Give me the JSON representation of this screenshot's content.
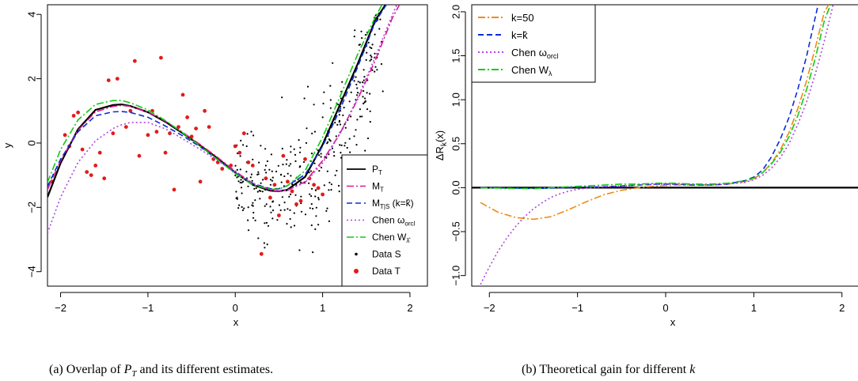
{
  "chart_data": [
    {
      "type": "line",
      "xlabel": "x",
      "ylabel": "y",
      "xlim": [
        -2.15,
        2.2
      ],
      "ylim": [
        -4.45,
        4.3
      ],
      "xticks": [
        -2,
        -1,
        0,
        1,
        2
      ],
      "yticks": [
        -4,
        -2,
        0,
        2,
        4
      ],
      "tick_labels_x": [
        "−2",
        "−1",
        "0",
        "1",
        "2"
      ],
      "tick_labels_y": [
        "−4",
        "−2",
        "0",
        "2",
        "4"
      ],
      "legend_position": "bottom-right",
      "legend": [
        {
          "label": "P",
          "sub": "T",
          "color": "#000000",
          "style": "solid"
        },
        {
          "label": "M",
          "sub": "T",
          "color": "#e0188a",
          "style": "dashdot"
        },
        {
          "label": "M",
          "sub": "T|S",
          "suffix": " (k=k̂)",
          "color": "#0a2cd6",
          "style": "dashed"
        },
        {
          "label": "Chen ω",
          "sub": "orcl",
          "color": "#b044e0",
          "style": "dotted"
        },
        {
          "label": "Chen W",
          "sub": "λ̂",
          "color": "#11cc11",
          "style": "dashdot"
        },
        {
          "label": "Data S",
          "color": "#000000",
          "style": "point-small"
        },
        {
          "label": "Data T",
          "color": "#e21b1b",
          "style": "point-large"
        }
      ],
      "series": [
        {
          "name": "P_T",
          "color": "#000000",
          "x": [
            -2.15,
            -2.0,
            -1.8,
            -1.6,
            -1.4,
            -1.3,
            -1.2,
            -1.0,
            -0.8,
            -0.6,
            -0.4,
            -0.2,
            0.0,
            0.2,
            0.4,
            0.5,
            0.6,
            0.8,
            1.0,
            1.2,
            1.4,
            1.6,
            1.72
          ],
          "y": [
            -1.68,
            -0.62,
            0.43,
            1.03,
            1.18,
            1.2,
            1.15,
            0.96,
            0.66,
            0.3,
            -0.08,
            -0.48,
            -0.92,
            -1.3,
            -1.48,
            -1.5,
            -1.45,
            -1.05,
            -0.05,
            1.2,
            2.45,
            3.8,
            4.3
          ]
        },
        {
          "name": "M_T",
          "color": "#e0188a",
          "x": [
            -2.15,
            -2.0,
            -1.8,
            -1.6,
            -1.4,
            -1.3,
            -1.2,
            -1.0,
            -0.8,
            -0.6,
            -0.4,
            -0.2,
            0.0,
            0.2,
            0.4,
            0.5,
            0.6,
            0.8,
            1.0,
            1.2,
            1.4,
            1.6,
            1.8,
            1.88
          ],
          "y": [
            -1.45,
            -0.55,
            0.4,
            0.97,
            1.14,
            1.17,
            1.14,
            0.96,
            0.68,
            0.33,
            -0.05,
            -0.45,
            -0.88,
            -1.25,
            -1.46,
            -1.5,
            -1.47,
            -1.2,
            -0.55,
            0.3,
            1.35,
            2.55,
            3.9,
            4.3
          ]
        },
        {
          "name": "M_T|S (k=k̂)",
          "color": "#0a2cd6",
          "x": [
            -2.15,
            -2.0,
            -1.8,
            -1.6,
            -1.4,
            -1.3,
            -1.2,
            -1.0,
            -0.8,
            -0.6,
            -0.4,
            -0.2,
            0.0,
            0.2,
            0.4,
            0.5,
            0.6,
            0.8,
            1.0,
            1.2,
            1.4,
            1.6,
            1.73
          ],
          "y": [
            -1.35,
            -0.5,
            0.35,
            0.85,
            0.97,
            0.98,
            0.95,
            0.8,
            0.53,
            0.22,
            -0.12,
            -0.52,
            -0.92,
            -1.26,
            -1.42,
            -1.42,
            -1.32,
            -0.98,
            -0.1,
            1.05,
            2.35,
            3.75,
            4.3
          ]
        },
        {
          "name": "Chen ω_orcl",
          "color": "#b044e0",
          "x": [
            -2.15,
            -2.0,
            -1.8,
            -1.6,
            -1.4,
            -1.3,
            -1.2,
            -1.0,
            -0.8,
            -0.6,
            -0.4,
            -0.2,
            0.0,
            0.2,
            0.4,
            0.5,
            0.6,
            0.8,
            1.0,
            1.2,
            1.4,
            1.6,
            1.8,
            1.85
          ],
          "y": [
            -2.8,
            -1.68,
            -0.6,
            0.07,
            0.45,
            0.57,
            0.64,
            0.64,
            0.44,
            0.13,
            -0.2,
            -0.55,
            -0.92,
            -1.25,
            -1.44,
            -1.47,
            -1.46,
            -1.23,
            -0.62,
            0.3,
            1.4,
            2.65,
            4.0,
            4.3
          ]
        },
        {
          "name": "Chen W_λ̂",
          "color": "#11cc11",
          "x": [
            -2.15,
            -2.0,
            -1.8,
            -1.6,
            -1.4,
            -1.3,
            -1.2,
            -1.0,
            -0.8,
            -0.6,
            -0.4,
            -0.2,
            0.0,
            0.2,
            0.4,
            0.5,
            0.6,
            0.8,
            1.0,
            1.2,
            1.4,
            1.6,
            1.68
          ],
          "y": [
            -1.22,
            -0.2,
            0.72,
            1.2,
            1.32,
            1.32,
            1.25,
            1.03,
            0.7,
            0.31,
            -0.1,
            -0.52,
            -0.95,
            -1.3,
            -1.44,
            -1.43,
            -1.32,
            -0.86,
            0.18,
            1.45,
            2.75,
            3.9,
            4.3
          ]
        }
      ],
      "points_T": {
        "x": [
          -2.1,
          -1.95,
          -1.9,
          -1.85,
          -1.8,
          -1.75,
          -1.7,
          -1.65,
          -1.6,
          -1.55,
          -1.5,
          -1.45,
          -1.4,
          -1.35,
          -1.25,
          -1.2,
          -1.15,
          -1.1,
          -1.0,
          -0.95,
          -0.9,
          -0.85,
          -0.8,
          -0.75,
          -0.7,
          -0.65,
          -0.6,
          -0.55,
          -0.5,
          -0.45,
          -0.4,
          -0.35,
          -0.3,
          -0.25,
          -0.2,
          -0.15,
          -0.05,
          0.0,
          0.05,
          0.1,
          0.15,
          0.2,
          0.3,
          0.35,
          0.4,
          0.45,
          0.5,
          0.55,
          0.6,
          0.65,
          0.7,
          0.75,
          0.8,
          0.85,
          0.9,
          0.95,
          1.0
        ],
        "y": [
          -1.2,
          0.25,
          -0.1,
          0.85,
          0.95,
          -0.2,
          -0.9,
          -1.0,
          -0.7,
          -0.3,
          -1.1,
          1.95,
          0.3,
          2.0,
          0.5,
          1.0,
          2.55,
          -0.4,
          0.25,
          1.0,
          0.35,
          2.65,
          -0.3,
          0.3,
          -1.45,
          0.5,
          1.5,
          0.8,
          0.2,
          0.45,
          -1.2,
          1.0,
          0.5,
          -0.5,
          -0.6,
          -0.8,
          -0.7,
          -0.1,
          -0.3,
          0.3,
          -0.6,
          -0.7,
          -3.45,
          -1.1,
          -1.7,
          -1.3,
          -2.25,
          -0.4,
          -1.2,
          -1.5,
          -1.9,
          -1.8,
          -0.5,
          -1.1,
          -1.3,
          -1.4,
          -1.6
        ]
      }
    },
    {
      "type": "line",
      "xlabel": "x",
      "ylabel": "ΔR",
      "ylabel_sub": "k",
      "ylabel_suffix": "(x)",
      "xlim": [
        -2.2,
        2.2
      ],
      "ylim": [
        -1.12,
        2.08
      ],
      "xticks": [
        -2,
        -1,
        0,
        1,
        2
      ],
      "yticks": [
        -1.0,
        -0.5,
        0.0,
        0.5,
        1.0,
        1.5,
        2.0
      ],
      "tick_labels_x": [
        "−2",
        "−1",
        "0",
        "1",
        "2"
      ],
      "tick_labels_y": [
        "−1.0",
        "−0.5",
        "0.0",
        "0.5",
        "1.0",
        "1.5",
        "2.0"
      ],
      "legend_position": "top-left",
      "legend": [
        {
          "label": "k=50",
          "color": "#f08a17",
          "style": "dashdot"
        },
        {
          "label": "k=k̂",
          "color": "#0a2cd6",
          "style": "dashed"
        },
        {
          "label": "Chen ω",
          "sub": "orcl",
          "color": "#b044e0",
          "style": "dotted"
        },
        {
          "label": "Chen W",
          "sub": "λ",
          "color": "#11cc11",
          "style": "dashdot"
        }
      ],
      "series": [
        {
          "name": "zero",
          "color": "#000000",
          "x": [
            -2.2,
            2.2
          ],
          "y": [
            0,
            0
          ]
        },
        {
          "name": "k=50",
          "color": "#f08a17",
          "x": [
            -2.1,
            -1.9,
            -1.7,
            -1.5,
            -1.3,
            -1.1,
            -0.9,
            -0.7,
            -0.5,
            -0.3,
            -0.1,
            0.1,
            0.3,
            0.5,
            0.7,
            0.9,
            1.0,
            1.1,
            1.2,
            1.3,
            1.4,
            1.5,
            1.6,
            1.7,
            1.8,
            1.85
          ],
          "y": [
            -0.17,
            -0.28,
            -0.34,
            -0.36,
            -0.33,
            -0.25,
            -0.16,
            -0.08,
            -0.03,
            0.0,
            0.02,
            0.03,
            0.03,
            0.03,
            0.04,
            0.07,
            0.1,
            0.17,
            0.28,
            0.43,
            0.63,
            0.9,
            1.22,
            1.6,
            2.0,
            2.08
          ]
        },
        {
          "name": "k=k̂",
          "color": "#0a2cd6",
          "x": [
            -2.1,
            -1.9,
            -1.7,
            -1.5,
            -1.3,
            -1.1,
            -0.9,
            -0.7,
            -0.5,
            -0.3,
            -0.1,
            0.1,
            0.3,
            0.5,
            0.7,
            0.9,
            1.0,
            1.1,
            1.2,
            1.3,
            1.4,
            1.5,
            1.6,
            1.7,
            1.73
          ],
          "y": [
            0,
            0,
            -0.005,
            -0.01,
            -0.005,
            0,
            0.005,
            0.01,
            0.02,
            0.03,
            0.04,
            0.04,
            0.03,
            0.03,
            0.04,
            0.08,
            0.12,
            0.2,
            0.35,
            0.55,
            0.8,
            1.12,
            1.5,
            1.95,
            2.08
          ]
        },
        {
          "name": "Chen ω_orcl",
          "color": "#b044e0",
          "x": [
            -2.1,
            -2.0,
            -1.9,
            -1.8,
            -1.7,
            -1.6,
            -1.5,
            -1.4,
            -1.3,
            -1.2,
            -1.1,
            -1.0,
            -0.9,
            -0.7,
            -0.5,
            -0.3,
            -0.1,
            0.1,
            0.3,
            0.5,
            0.7,
            0.9,
            1.0,
            1.1,
            1.2,
            1.3,
            1.4,
            1.5,
            1.6,
            1.7,
            1.8,
            1.9
          ],
          "y": [
            -1.1,
            -0.9,
            -0.72,
            -0.57,
            -0.44,
            -0.33,
            -0.24,
            -0.17,
            -0.11,
            -0.07,
            -0.04,
            -0.02,
            -0.005,
            0.01,
            0.02,
            0.03,
            0.04,
            0.04,
            0.04,
            0.03,
            0.04,
            0.06,
            0.09,
            0.14,
            0.22,
            0.34,
            0.5,
            0.72,
            0.98,
            1.3,
            1.67,
            2.08
          ]
        },
        {
          "name": "Chen W_λ",
          "color": "#11cc11",
          "x": [
            -2.1,
            -1.9,
            -1.7,
            -1.5,
            -1.3,
            -1.1,
            -0.9,
            -0.7,
            -0.5,
            -0.3,
            -0.1,
            0.1,
            0.3,
            0.5,
            0.7,
            0.9,
            1.0,
            1.1,
            1.2,
            1.3,
            1.4,
            1.5,
            1.6,
            1.7,
            1.8,
            1.87
          ],
          "y": [
            0,
            -0.005,
            -0.01,
            -0.01,
            0,
            0.01,
            0.02,
            0.03,
            0.04,
            0.04,
            0.05,
            0.05,
            0.04,
            0.04,
            0.05,
            0.08,
            0.11,
            0.17,
            0.27,
            0.4,
            0.58,
            0.82,
            1.12,
            1.48,
            1.9,
            2.08
          ]
        }
      ]
    }
  ],
  "captions": {
    "a": "(a) Overlap of",
    "a_math": "P",
    "a_math_sub": "T",
    "a_rest": "and its different estimates.",
    "b": "(b) Theoretical gain for different",
    "b_math": "k"
  }
}
